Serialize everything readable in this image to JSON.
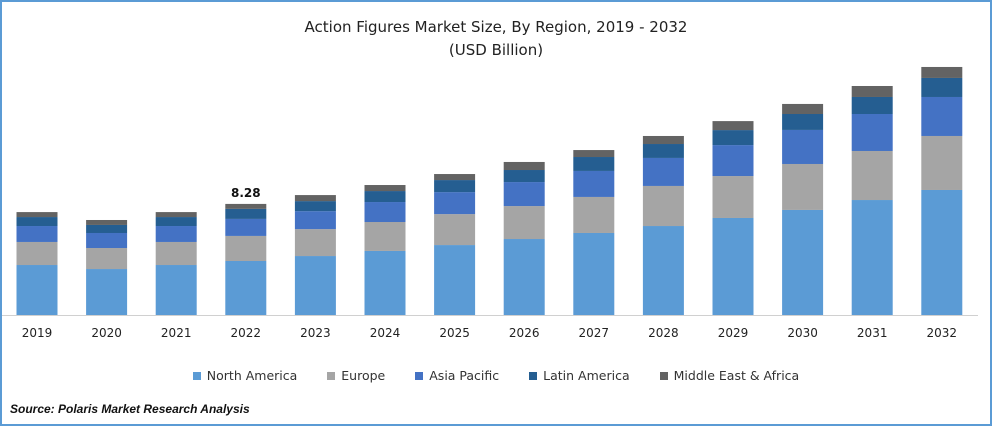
{
  "chart_data": {
    "type": "bar",
    "stacked": true,
    "title": "Action Figures Market Size, By Region, 2019 - 2032",
    "subtitle": "(USD Billion)",
    "xlabel": "",
    "ylabel": "",
    "ylim": [
      0,
      19
    ],
    "grid": false,
    "legend_position": "bottom",
    "categories": [
      "2019",
      "2020",
      "2021",
      "2022",
      "2023",
      "2024",
      "2025",
      "2026",
      "2027",
      "2028",
      "2029",
      "2030",
      "2031",
      "2032"
    ],
    "series": [
      {
        "name": "North America",
        "color": "#5b9bd5",
        "values": [
          3.73,
          3.43,
          3.73,
          4.03,
          4.4,
          4.78,
          5.22,
          5.67,
          6.12,
          6.64,
          7.24,
          7.84,
          8.58,
          9.33
        ]
      },
      {
        "name": "Europe",
        "color": "#a5a5a5",
        "values": [
          1.72,
          1.57,
          1.72,
          1.87,
          2.01,
          2.16,
          2.31,
          2.46,
          2.69,
          2.99,
          3.13,
          3.43,
          3.66,
          4.03
        ]
      },
      {
        "name": "Asia Pacific",
        "color": "#4472c4",
        "values": [
          1.19,
          1.12,
          1.19,
          1.27,
          1.34,
          1.49,
          1.64,
          1.79,
          1.94,
          2.09,
          2.31,
          2.54,
          2.76,
          2.91
        ]
      },
      {
        "name": "Latin America",
        "color": "#255e91",
        "values": [
          0.67,
          0.6,
          0.67,
          0.75,
          0.75,
          0.82,
          0.9,
          0.9,
          1.04,
          1.04,
          1.12,
          1.19,
          1.27,
          1.42
        ]
      },
      {
        "name": "Middle East & Africa",
        "color": "#636363",
        "values": [
          0.37,
          0.37,
          0.37,
          0.37,
          0.45,
          0.45,
          0.45,
          0.6,
          0.52,
          0.6,
          0.67,
          0.75,
          0.82,
          0.82
        ]
      }
    ],
    "annotations": [
      {
        "category": "2022",
        "text": "8.28"
      }
    ]
  },
  "source": "Source: Polaris  Market Research Analysis"
}
